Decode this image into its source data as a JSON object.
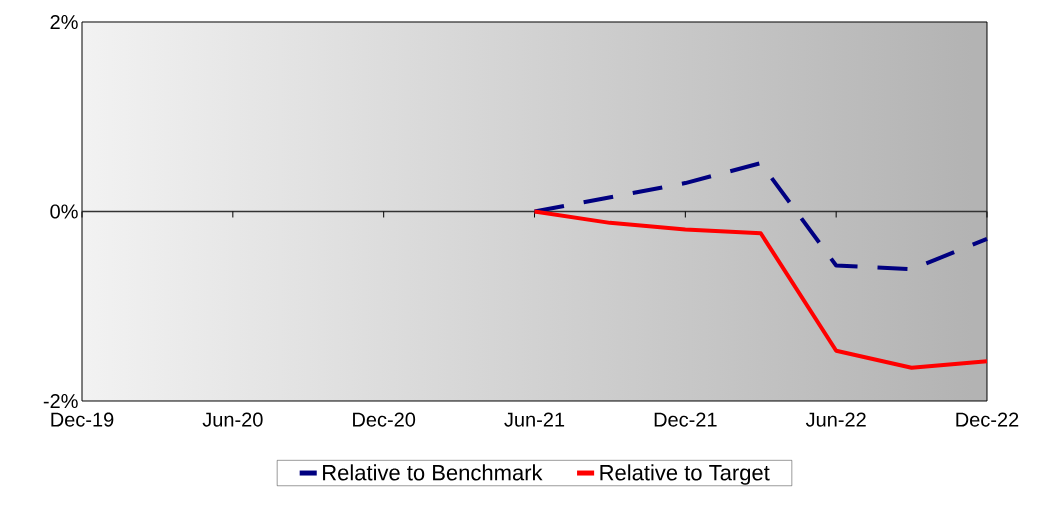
{
  "chart_data": {
    "type": "line",
    "x": [
      "2021-06",
      "2021-09",
      "2021-12",
      "2022-03",
      "2022-06",
      "2022-09",
      "2022-12"
    ],
    "series": [
      {
        "name": "Relative to Benchmark",
        "color": "#000080",
        "line_style": "dashed",
        "values": [
          0,
          0.15,
          0.3,
          0.51,
          -0.57,
          -0.61,
          -0.29
        ]
      },
      {
        "name": "Relative to Target",
        "color": "#ff0000",
        "line_style": "solid",
        "values": [
          0,
          -0.12,
          -0.19,
          -0.23,
          -1.47,
          -1.65,
          -1.58
        ]
      }
    ],
    "xlim": [
      "2019-12",
      "2022-12"
    ],
    "xticks": [
      {
        "value": "2019-12",
        "label": "Dec-19"
      },
      {
        "value": "2020-06",
        "label": "Jun-20"
      },
      {
        "value": "2020-12",
        "label": "Dec-20"
      },
      {
        "value": "2021-06",
        "label": "Jun-21"
      },
      {
        "value": "2021-12",
        "label": "Dec-21"
      },
      {
        "value": "2022-06",
        "label": "Jun-22"
      },
      {
        "value": "2022-12",
        "label": "Dec-22"
      }
    ],
    "ylim": [
      -2,
      2
    ],
    "yticks": [
      {
        "value": -2,
        "label": "-2%"
      },
      {
        "value": 0,
        "label": "0%"
      },
      {
        "value": 2,
        "label": "2%"
      }
    ],
    "legend": "bottom"
  }
}
